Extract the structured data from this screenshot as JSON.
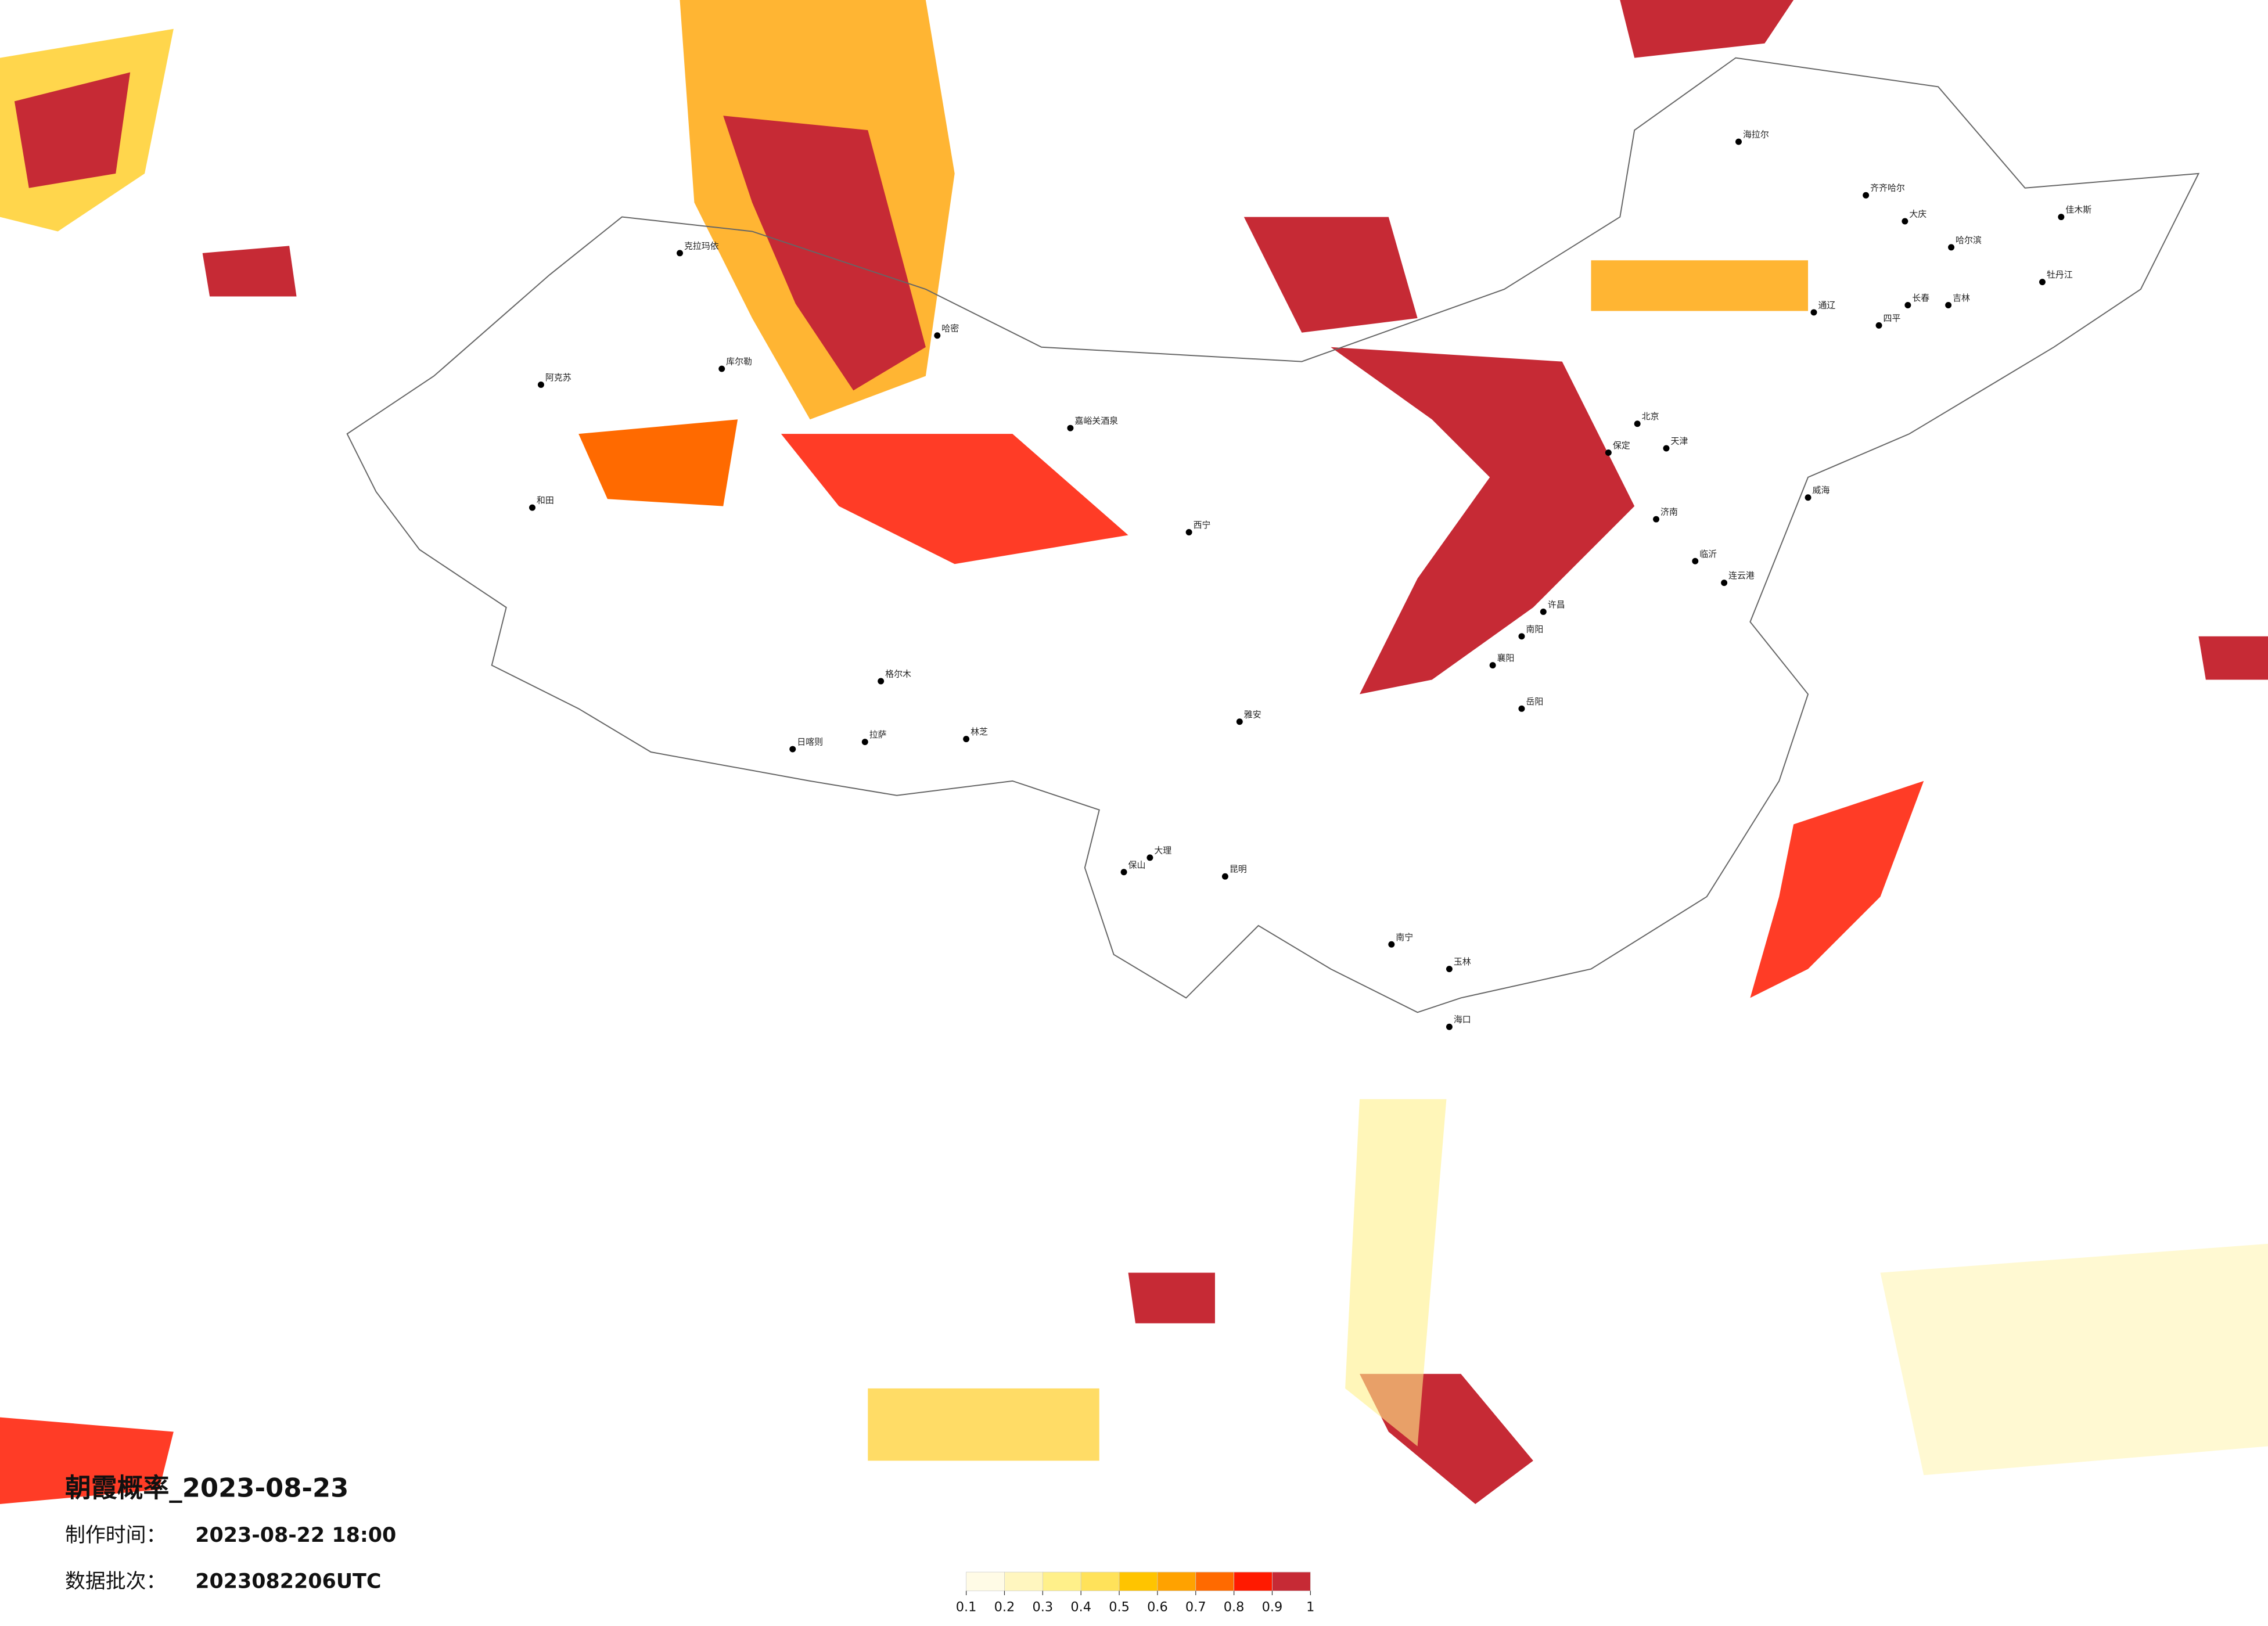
{
  "title": "朝霞概率_2023-08-23",
  "production_time_label": "制作时间：",
  "production_time": "2023-08-22 18:00",
  "batch_label": "数据批次：",
  "batch": "2023082206UTC",
  "legend": {
    "ticks": [
      0.1,
      0.2,
      0.3,
      0.4,
      0.5,
      0.6,
      0.7,
      0.8,
      0.9,
      1
    ],
    "colors": [
      "#fffbe6",
      "#fff6bf",
      "#fff08a",
      "#ffe25a",
      "#ffc400",
      "#ffa200",
      "#ff6a00",
      "#ff1a00",
      "#c62a35"
    ]
  },
  "cities": [
    "海拉尔",
    "齐齐哈尔",
    "大庆",
    "哈尔滨",
    "佳木斯",
    "牡丹江",
    "长春",
    "吉林",
    "四平",
    "通辽",
    "北京",
    "天津",
    "保定",
    "威海",
    "济南",
    "临沂",
    "连云港",
    "许昌",
    "南阳",
    "襄阳",
    "岳阳",
    "克拉玛依",
    "库尔勒",
    "阿克苏",
    "和田",
    "哈密",
    "嘉峪关酒泉",
    "格尔木",
    "拉萨",
    "日喀则",
    "林芝",
    "西宁",
    "雅安",
    "昆明",
    "大理",
    "保山",
    "南宁",
    "玉林",
    "海口"
  ]
}
